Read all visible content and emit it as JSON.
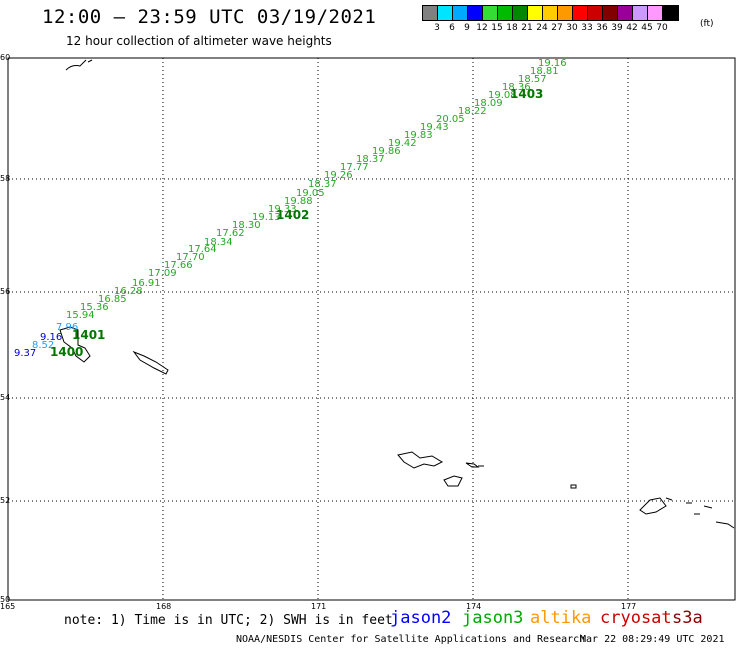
{
  "header": {
    "title": "12:00 – 23:59 UTC 03/19/2021",
    "subtitle": "12 hour collection of altimeter wave heights"
  },
  "color_scale": {
    "colors": [
      "#808080",
      "#00e5ff",
      "#00aaff",
      "#0000ff",
      "#33dd33",
      "#00bb00",
      "#008800",
      "#ffff00",
      "#ffcc00",
      "#ff9900",
      "#ff0000",
      "#cc0000",
      "#800000",
      "#990099",
      "#cc99ff",
      "#ff99ff",
      "#000000"
    ],
    "labels": [
      "3",
      "6",
      "9",
      "12",
      "15",
      "18",
      "21",
      "24",
      "27",
      "30",
      "33",
      "36",
      "39",
      "42",
      "45",
      "70"
    ],
    "unit": "(ft)"
  },
  "axes": {
    "lat_ticks": [
      "60",
      "58",
      "56",
      "54",
      "52",
      "50"
    ],
    "lon_ticks": [
      "165",
      "168",
      "171",
      "174",
      "177"
    ]
  },
  "tracks": {
    "green_color": "#22aa22",
    "blue_color": "#1a9fff",
    "darkblue_color": "#0000cc",
    "swh_values": [
      {
        "v": "19.16",
        "c": "g"
      },
      {
        "v": "18.81",
        "c": "g"
      },
      {
        "v": "18.57",
        "c": "g"
      },
      {
        "v": "18.36",
        "c": "g"
      },
      {
        "v": "19.08",
        "c": "g"
      },
      {
        "v": "18.09",
        "c": "g"
      },
      {
        "v": "18.22",
        "c": "g"
      },
      {
        "v": "20.05",
        "c": "g"
      },
      {
        "v": "19.43",
        "c": "g"
      },
      {
        "v": "19.83",
        "c": "g"
      },
      {
        "v": "19.42",
        "c": "g"
      },
      {
        "v": "19.86",
        "c": "g"
      },
      {
        "v": "18.37",
        "c": "g"
      },
      {
        "v": "17.77",
        "c": "g"
      },
      {
        "v": "19.26",
        "c": "g"
      },
      {
        "v": "18.37",
        "c": "g"
      },
      {
        "v": "19.05",
        "c": "g"
      },
      {
        "v": "19.88",
        "c": "g"
      },
      {
        "v": "19.33",
        "c": "g"
      },
      {
        "v": "19.13",
        "c": "g"
      },
      {
        "v": "18.30",
        "c": "g"
      },
      {
        "v": "17.62",
        "c": "g"
      },
      {
        "v": "18.34",
        "c": "g"
      },
      {
        "v": "17.64",
        "c": "g"
      },
      {
        "v": "17.70",
        "c": "g"
      },
      {
        "v": "17.66",
        "c": "g"
      },
      {
        "v": "17.09",
        "c": "g"
      },
      {
        "v": "16.91",
        "c": "g"
      },
      {
        "v": "16.28",
        "c": "g"
      },
      {
        "v": "16.85",
        "c": "g"
      },
      {
        "v": "15.36",
        "c": "g"
      },
      {
        "v": "15.94",
        "c": "g"
      },
      {
        "v": "7.96",
        "c": "b"
      },
      {
        "v": "9.16",
        "c": "d"
      },
      {
        "v": "8.52",
        "c": "b"
      },
      {
        "v": "9.37",
        "c": "d"
      }
    ],
    "time_labels": [
      "1403",
      "1402",
      "1401",
      "1400"
    ]
  },
  "footer": {
    "note": "note: 1) Time is in UTC; 2) SWH is in feet",
    "satellites": [
      {
        "name": "jason2",
        "color": "#0000ff"
      },
      {
        "name": "jason3",
        "color": "#00aa00"
      },
      {
        "name": "altika",
        "color": "#ff9900"
      },
      {
        "name": "cryosat",
        "color": "#cc0000"
      },
      {
        "name": "s3a",
        "color": "#880000"
      }
    ],
    "credit": "NOAA/NESDIS Center for Satellite Applications and Research",
    "timestamp": "Mar 22 08:29:49 UTC 2021"
  }
}
